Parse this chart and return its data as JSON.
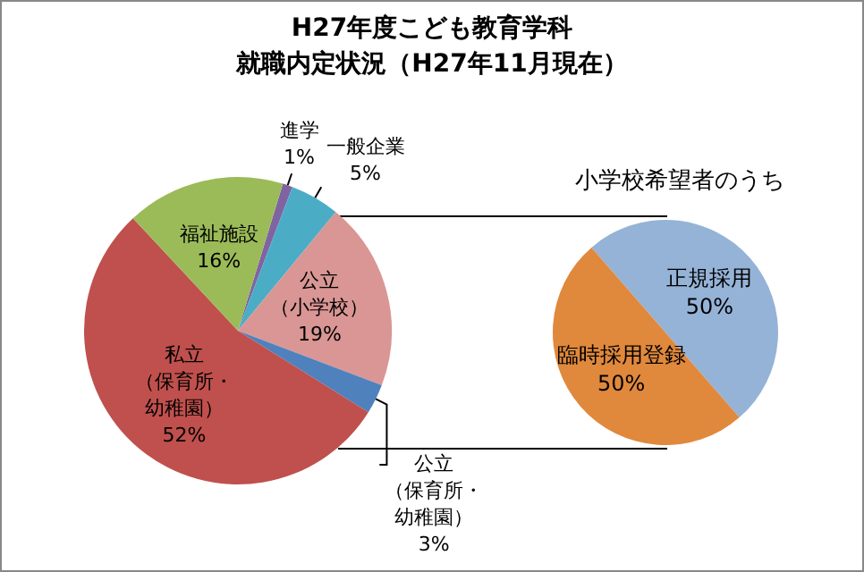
{
  "chart_data": [
    {
      "type": "pie",
      "title": "H27年度こども教育学科",
      "subtitle": "就職内定状況（H27年11月現在）",
      "categories": [
        "進学",
        "一般企業",
        "公立（小学校）",
        "公立（保育所・幼稚園）",
        "私立（保育所・幼稚園）",
        "福祉施設"
      ],
      "values": [
        1,
        5,
        19,
        3,
        52,
        16
      ],
      "value_labels": [
        "1%",
        "5%",
        "19%",
        "3%",
        "52%",
        "16%"
      ],
      "colors": [
        "#8064a2",
        "#4bacc6",
        "#d99694",
        "#4f81bd",
        "#c0504d",
        "#9bbb59"
      ],
      "legend": false
    },
    {
      "type": "pie",
      "title": "小学校希望者のうち",
      "categories": [
        "正規採用",
        "臨時採用登録"
      ],
      "values": [
        50,
        50
      ],
      "value_labels": [
        "50%",
        "50%"
      ],
      "colors": [
        "#95b3d7",
        "#e0883c"
      ],
      "legend": false
    }
  ]
}
